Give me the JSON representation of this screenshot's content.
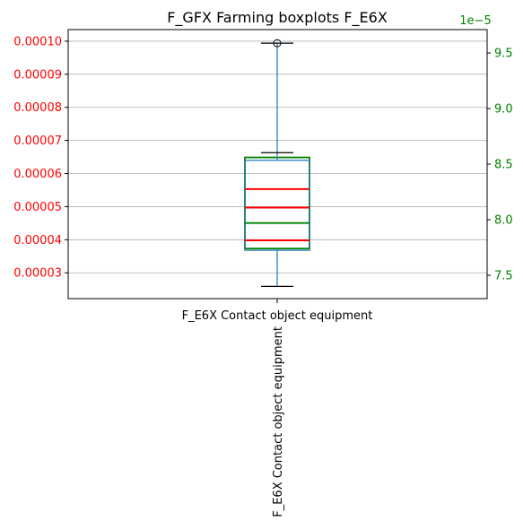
{
  "chart_data": {
    "type": "boxplot",
    "title": "F_GFX Farming boxplots F_E6X",
    "grid": true,
    "categories": [
      "F_E6X Contact object equipment"
    ],
    "rotated_category_label": "F_E6X Contact object equipment",
    "left_axis": {
      "color": "#ff0000",
      "ylim": [
        2.22e-05,
        0.0001035
      ],
      "ticks": [
        3e-05,
        4e-05,
        5e-05,
        6e-05,
        7e-05,
        8e-05,
        9e-05,
        0.0001
      ],
      "tick_labels": [
        "0.00003",
        "0.00004",
        "0.00005",
        "0.00006",
        "0.00007",
        "0.00008",
        "0.00009",
        "0.00010"
      ],
      "box": {
        "whisker_low": 2.59e-05,
        "q1": 3.68e-05,
        "median": 4.97e-05,
        "q3": 6.4e-05,
        "whisker_high": 6.63e-05,
        "outliers": [
          9.94e-05
        ],
        "extra_lines": [
          3.98e-05,
          5.53e-05
        ]
      }
    },
    "right_axis": {
      "color": "#008000",
      "ylim": [
        7.29,
        9.71
      ],
      "offset_text": "1e−5",
      "ticks": [
        7.5,
        8.0,
        8.5,
        9.0,
        9.5
      ],
      "tick_labels": [
        "7.5",
        "8.0",
        "8.5",
        "9.0",
        "9.5"
      ],
      "box": {
        "q1": 7.74,
        "median": 7.97,
        "q3": 8.56,
        "line_2": 8.0
      }
    },
    "colors": {
      "box_left": "#1f77b4",
      "median_left": "#ff0000",
      "box_right": "#008000",
      "cap": "#000000",
      "grid": "#b0b0b0"
    }
  }
}
